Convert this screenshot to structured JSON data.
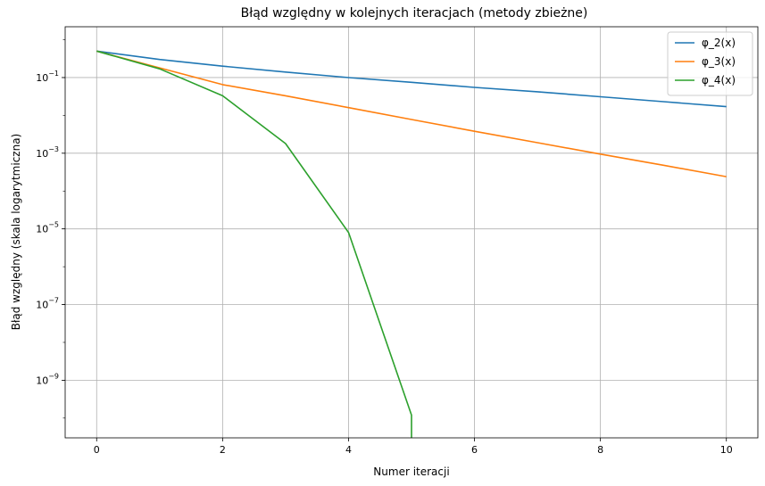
{
  "chart_data": {
    "type": "line",
    "title": "Błąd względny w kolejnych iteracjach (metody zbieżne)",
    "xlabel": "Numer iteracji",
    "ylabel": "Błąd względny (skala logarytmiczna)",
    "xscale": "linear",
    "yscale": "log",
    "xlim": [
      -0.5,
      10.5
    ],
    "ylim": [
      3e-11,
      2.2
    ],
    "xticks": [
      0,
      2,
      4,
      6,
      8,
      10
    ],
    "yticks": [
      {
        "value": 0.1,
        "mant": "10",
        "exp": "−1"
      },
      {
        "value": 0.001,
        "mant": "10",
        "exp": "−3"
      },
      {
        "value": 1e-05,
        "mant": "10",
        "exp": "−5"
      },
      {
        "value": 1e-07,
        "mant": "10",
        "exp": "−7"
      },
      {
        "value": 1e-09,
        "mant": "10",
        "exp": "−9"
      }
    ],
    "grid": true,
    "legend_position": "top-right",
    "series": [
      {
        "name": "φ_2(x)",
        "color": "#1f77b4",
        "x": [
          0,
          1,
          2,
          3,
          4,
          5,
          6,
          7,
          8,
          9,
          10
        ],
        "y": [
          0.5,
          0.3,
          0.2,
          0.14,
          0.1,
          0.075,
          0.055,
          0.042,
          0.031,
          0.023,
          0.017
        ]
      },
      {
        "name": "φ_3(x)",
        "color": "#ff7f0e",
        "x": [
          0,
          1,
          2,
          3,
          4,
          5,
          6,
          7,
          8,
          9,
          10
        ],
        "y": [
          0.5,
          0.18,
          0.065,
          0.033,
          0.016,
          0.0078,
          0.0038,
          0.0019,
          0.00095,
          0.00048,
          0.00024
        ]
      },
      {
        "name": "φ_4(x)",
        "color": "#2ca02c",
        "x": [
          0,
          1,
          2,
          3,
          4,
          5,
          5
        ],
        "y": [
          0.5,
          0.17,
          0.033,
          0.0018,
          8e-06,
          1.2e-10,
          3e-11
        ]
      }
    ]
  }
}
